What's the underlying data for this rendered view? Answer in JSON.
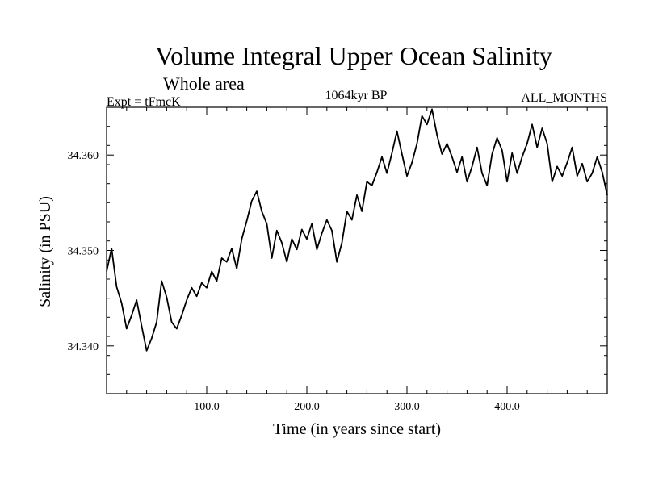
{
  "chart_data": {
    "type": "line",
    "title": "Volume Integral Upper Ocean Salinity",
    "subtitle": "Whole area",
    "header_left": "Expt = tFmcK",
    "header_center": "1064kyr BP",
    "header_right": "ALL_MONTHS",
    "xlabel": "Time (in years since start)",
    "ylabel": "Salinity (in PSU)",
    "xlim": [
      0,
      500
    ],
    "ylim": [
      34.335,
      34.365
    ],
    "x_ticks": [
      100,
      200,
      300,
      400
    ],
    "x_tick_labels": [
      "100.0",
      "200.0",
      "300.0",
      "400.0"
    ],
    "y_ticks": [
      34.34,
      34.35,
      34.36
    ],
    "y_tick_labels": [
      "34.340",
      "34.350",
      "34.360"
    ],
    "grid": false,
    "series": [
      {
        "name": "Salinity",
        "color": "#000000",
        "x": [
          0,
          5,
          10,
          15,
          20,
          25,
          30,
          35,
          40,
          45,
          50,
          55,
          60,
          65,
          70,
          75,
          80,
          85,
          90,
          95,
          100,
          105,
          110,
          115,
          120,
          125,
          130,
          135,
          140,
          145,
          150,
          155,
          160,
          165,
          170,
          175,
          180,
          185,
          190,
          195,
          200,
          205,
          210,
          215,
          220,
          225,
          230,
          235,
          240,
          245,
          250,
          255,
          260,
          265,
          270,
          275,
          280,
          285,
          290,
          295,
          300,
          305,
          310,
          315,
          320,
          325,
          330,
          335,
          340,
          345,
          350,
          355,
          360,
          365,
          370,
          375,
          380,
          385,
          390,
          395,
          400,
          405,
          410,
          415,
          420,
          425,
          430,
          435,
          440,
          445,
          450,
          455,
          460,
          465,
          470,
          475,
          480,
          485,
          490,
          495,
          500
        ],
        "values": [
          34.3478,
          34.3502,
          34.3462,
          34.3445,
          34.3418,
          34.3432,
          34.3448,
          34.3421,
          34.3395,
          34.3408,
          34.3425,
          34.3468,
          34.3451,
          34.3425,
          34.3418,
          34.3432,
          34.3448,
          34.3461,
          34.3452,
          34.3466,
          34.3461,
          34.3478,
          34.3468,
          34.3492,
          34.3488,
          34.3502,
          34.3481,
          34.3512,
          34.3531,
          34.3552,
          34.3562,
          34.3541,
          34.3528,
          34.3492,
          34.3521,
          34.3508,
          34.3488,
          34.3512,
          34.3501,
          34.3522,
          34.3512,
          34.3528,
          34.3501,
          34.3518,
          34.3532,
          34.3521,
          34.3488,
          34.3508,
          34.3541,
          34.3532,
          34.3558,
          34.3541,
          34.3572,
          34.3568,
          34.3582,
          34.3598,
          34.3581,
          34.3602,
          34.3625,
          34.3601,
          34.3578,
          34.3592,
          34.3612,
          34.3641,
          34.3632,
          34.3648,
          34.3621,
          34.3601,
          34.3612,
          34.3598,
          34.3582,
          34.3598,
          34.3572,
          34.3588,
          34.3608,
          34.3581,
          34.3568,
          34.3601,
          34.3618,
          34.3605,
          34.3572,
          34.3602,
          34.3581,
          34.3598,
          34.3612,
          34.3632,
          34.3608,
          34.3628,
          34.3612,
          34.3572,
          34.3588,
          34.3578,
          34.3592,
          34.3608,
          34.3578,
          34.3591,
          34.3572,
          34.3581,
          34.3598,
          34.3582,
          34.3558
        ]
      }
    ]
  }
}
